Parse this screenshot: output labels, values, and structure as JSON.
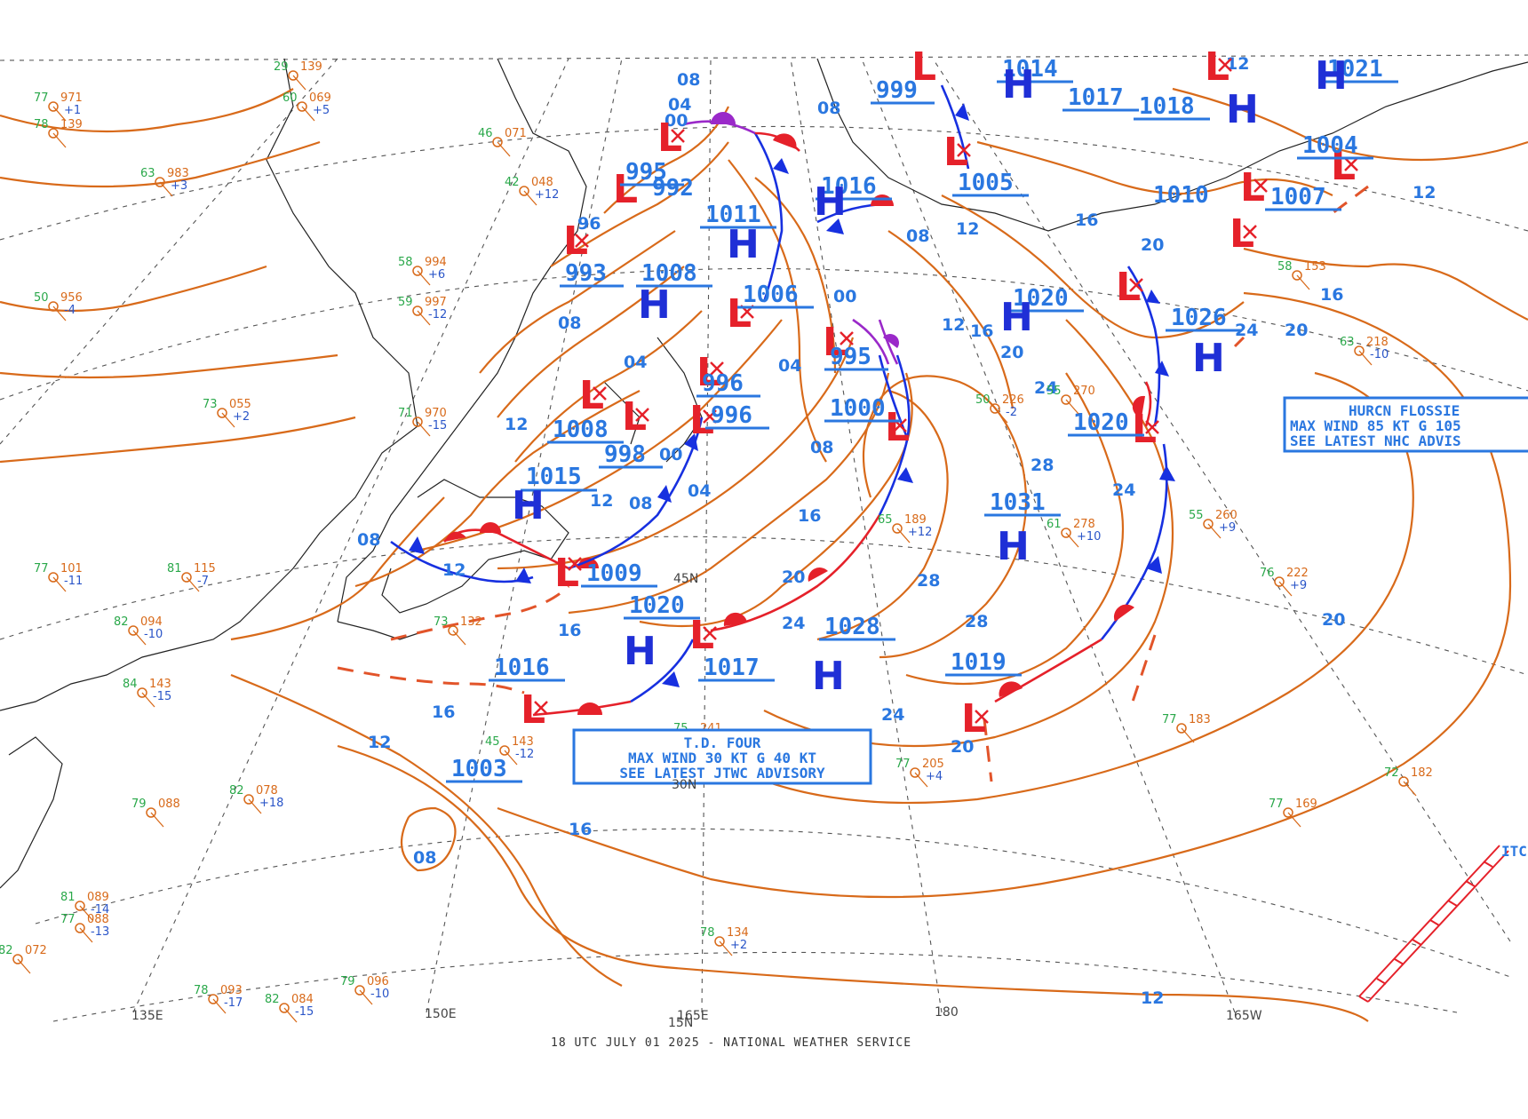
{
  "footer": "18 UTC JULY 01 2025 - NATIONAL WEATHER SERVICE",
  "colors": {
    "isobar": "#d86a1a",
    "label": "#2a77e0",
    "high": "#1f2fd6",
    "low": "#e5212a",
    "cold_front": "#1730e0",
    "warm_front": "#e5212a",
    "occluded_front": "#9a29c9"
  },
  "grid_labels": {
    "lon_135e": "135E",
    "lon_150e": "150E",
    "lon_165e": "165E",
    "lon_180": "180",
    "lon_165w": "165W",
    "lat_45n": "45N",
    "lat_30n": "30N",
    "lat_15n": "15N"
  },
  "advisories": {
    "td_four": {
      "line1": "T.D. FOUR",
      "line2": "MAX WIND 30 KT G 40 KT",
      "line3": "SEE LATEST JTWC ADVISORY"
    },
    "flossie": {
      "line1": "HURCN FLOSSIE",
      "line2": "MAX WIND 85 KT G 105",
      "line3": "SEE LATEST NHC ADVIS"
    }
  },
  "itcz_label": "ITC",
  "highs": [
    {
      "letter": "H",
      "pressure": "1031"
    },
    {
      "letter": "H",
      "pressure": "1028"
    },
    {
      "letter": "H",
      "pressure": "1020"
    },
    {
      "letter": "H",
      "pressure": "1015"
    },
    {
      "letter": "H",
      "pressure": "1026"
    },
    {
      "letter": "H",
      "pressure": "1011"
    },
    {
      "letter": "H",
      "pressure": "1008"
    },
    {
      "letter": "H",
      "pressure": "1016"
    },
    {
      "letter": "H",
      "pressure": "1014"
    },
    {
      "letter": "H",
      "pressure": "1018"
    },
    {
      "letter": "H",
      "pressure": "1021"
    },
    {
      "letter": "H",
      "pressure": "1020"
    }
  ],
  "lows": [
    {
      "letter": "L",
      "pressure": "1009"
    },
    {
      "letter": "L",
      "pressure": "1017"
    },
    {
      "letter": "L",
      "pressure": "1016"
    },
    {
      "letter": "L",
      "pressure": "1019"
    },
    {
      "letter": "L",
      "pressure": "1020"
    },
    {
      "letter": "L",
      "pressure": "1000"
    },
    {
      "letter": "L",
      "pressure": "995"
    },
    {
      "letter": "L",
      "pressure": "996"
    },
    {
      "letter": "L",
      "pressure": "996"
    },
    {
      "letter": "L",
      "pressure": "1008"
    },
    {
      "letter": "L",
      "pressure": "998"
    },
    {
      "letter": "L",
      "pressure": "1006"
    },
    {
      "letter": "L",
      "pressure": "993"
    },
    {
      "letter": "L",
      "pressure": "995"
    },
    {
      "letter": "L",
      "pressure": "992"
    },
    {
      "letter": "L",
      "pressure": "999"
    },
    {
      "letter": "L",
      "pressure": "1005"
    },
    {
      "letter": "L",
      "pressure": "1017"
    },
    {
      "letter": "L",
      "pressure": "1004"
    },
    {
      "letter": "L",
      "pressure": "1007"
    },
    {
      "letter": "L",
      "pressure": "1010"
    },
    {
      "letter": "L",
      "pressure": "1003"
    }
  ],
  "isobar_labels": {
    "a": "08",
    "b": "04",
    "c": "00",
    "d": "96",
    "e": "12",
    "f": "16",
    "g": "20",
    "h": "24",
    "i": "28",
    "j": "12",
    "k": "16",
    "l": "08",
    "m": "20",
    "n": "24",
    "o": "28",
    "p": "12",
    "q": "16",
    "r": "20",
    "s": "24",
    "t": "12",
    "u": "04",
    "v": "08",
    "w": "00",
    "x": "04",
    "y": "08",
    "z": "12",
    "aa": "16",
    "ab": "20",
    "ac": "24",
    "ad": "28",
    "ae": "16",
    "af": "12",
    "ag": "08",
    "ah": "04",
    "ai": "00",
    "aj": "08",
    "ak": "12",
    "al": "16",
    "am": "20",
    "an": "24",
    "ao": "08",
    "ap": "12",
    "aq": "16",
    "ar": "20",
    "as": "12",
    "at": "08"
  },
  "stations": [
    {
      "t": "77",
      "p": "971",
      "d": "+1"
    },
    {
      "t": "60",
      "p": "069",
      "d": "+5"
    },
    {
      "t": "50",
      "p": "956",
      "d": "-4"
    },
    {
      "t": "59",
      "p": "997",
      "d": "-12"
    },
    {
      "t": "58",
      "p": "994",
      "d": "+6"
    },
    {
      "t": "71",
      "p": "970",
      "d": "-15"
    },
    {
      "t": "73",
      "p": "055",
      "d": "+2"
    },
    {
      "t": "79",
      "p": "088",
      "d": ""
    },
    {
      "t": "82",
      "p": "078",
      "d": "+18"
    },
    {
      "t": "81",
      "p": "089",
      "d": "-14"
    },
    {
      "t": "77",
      "p": "088",
      "d": "-13"
    },
    {
      "t": "82",
      "p": "072",
      "d": ""
    },
    {
      "t": "78",
      "p": "093",
      "d": "-17"
    },
    {
      "t": "82",
      "p": "084",
      "d": "-15"
    },
    {
      "t": "79",
      "p": "096",
      "d": "-10"
    },
    {
      "t": "78",
      "p": "134",
      "d": "+2"
    },
    {
      "t": "77",
      "p": "205",
      "d": "+4"
    },
    {
      "t": "75",
      "p": "241",
      "d": ""
    },
    {
      "t": "77",
      "p": "183",
      "d": ""
    },
    {
      "t": "77",
      "p": "169",
      "d": ""
    },
    {
      "t": "72",
      "p": "182",
      "d": ""
    },
    {
      "t": "76",
      "p": "222",
      "d": "+9"
    },
    {
      "t": "55",
      "p": "260",
      "d": "+9"
    },
    {
      "t": "63",
      "p": "218",
      "d": "-10"
    },
    {
      "t": "58",
      "p": "153",
      "d": ""
    },
    {
      "t": "61",
      "p": "278",
      "d": "+10"
    },
    {
      "t": "55",
      "p": "270",
      "d": ""
    },
    {
      "t": "50",
      "p": "226",
      "d": "-2"
    },
    {
      "t": "65",
      "p": "189",
      "d": "+12"
    },
    {
      "t": "73",
      "p": "132",
      "d": ""
    },
    {
      "t": "45",
      "p": "143",
      "d": "-12"
    },
    {
      "t": "84",
      "p": "143",
      "d": "-15"
    },
    {
      "t": "82",
      "p": "094",
      "d": "-10"
    },
    {
      "t": "81",
      "p": "115",
      "d": "-7"
    },
    {
      "t": "77",
      "p": "101",
      "d": "-11"
    },
    {
      "t": "63",
      "p": "983",
      "d": "+3"
    },
    {
      "t": "78",
      "p": "139",
      "d": ""
    },
    {
      "t": "29",
      "p": "139",
      "d": ""
    },
    {
      "t": "46",
      "p": "071",
      "d": ""
    },
    {
      "t": "42",
      "p": "048",
      "d": "+12"
    }
  ]
}
